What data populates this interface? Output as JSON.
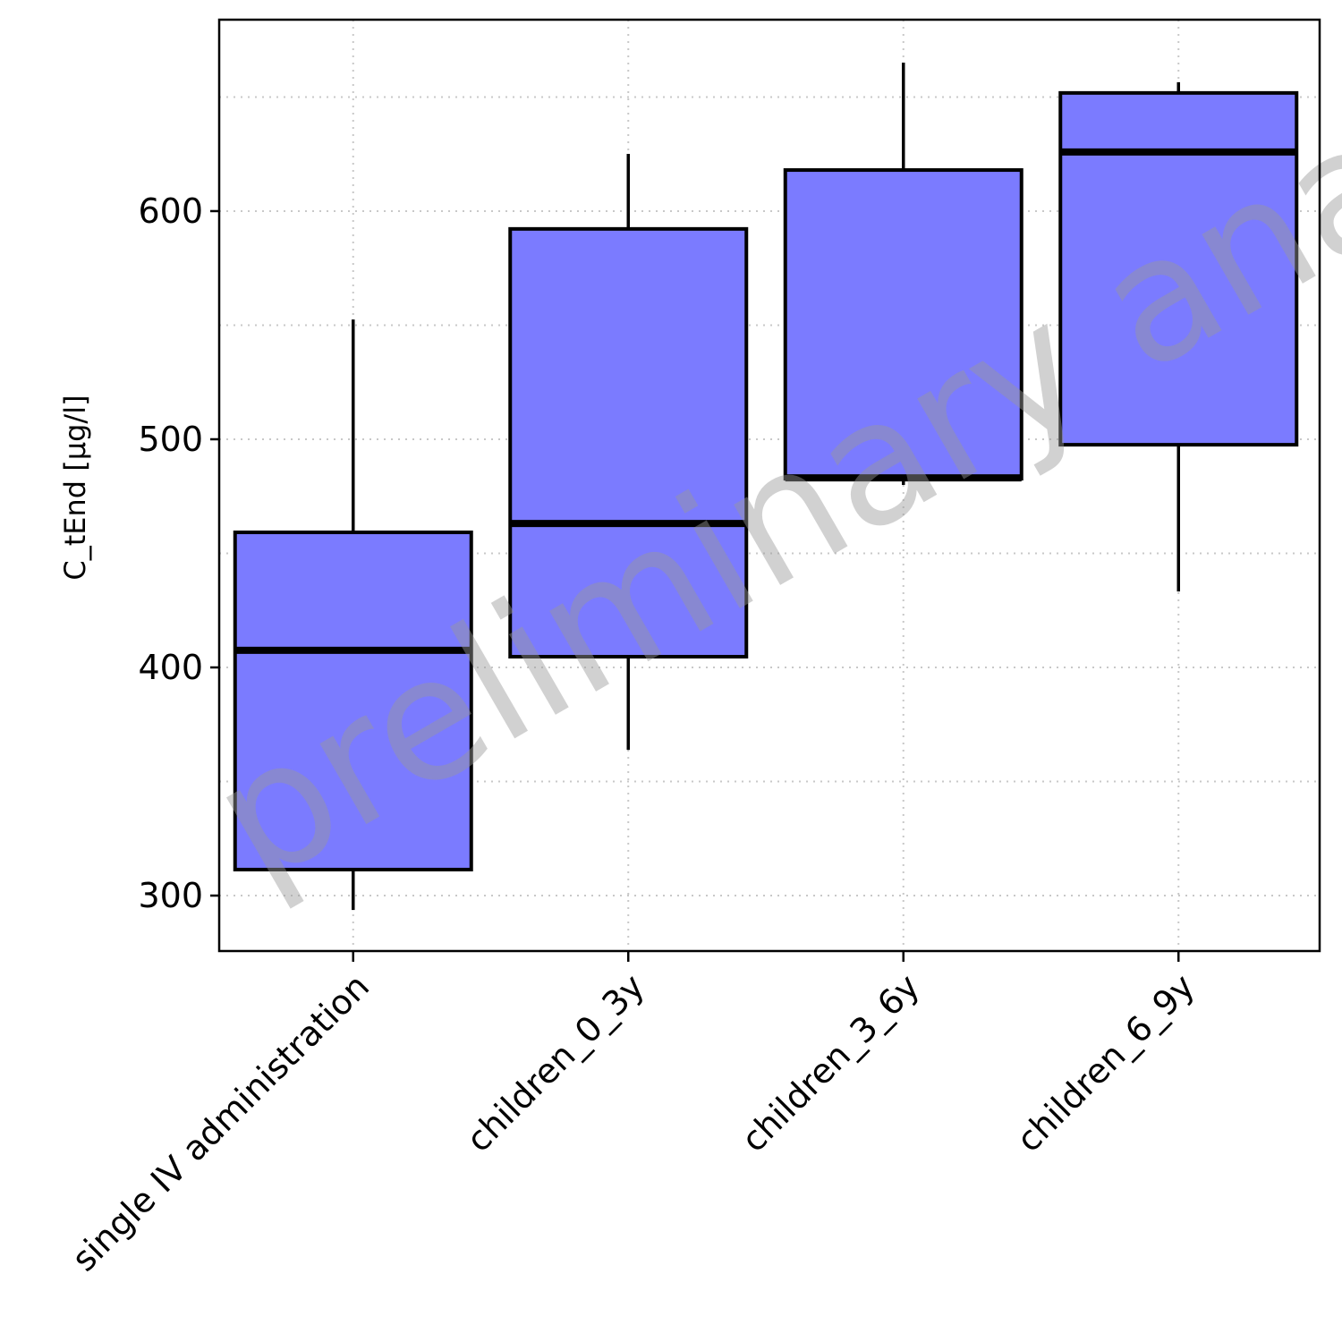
{
  "chart_data": {
    "type": "box",
    "title": "",
    "xlabel": "",
    "ylabel": "C_tEnd [µg/l]",
    "ylim": [
      275.7,
      683.9
    ],
    "yticks": [
      300,
      400,
      500,
      600
    ],
    "ytick_labels": [
      "300",
      "400",
      "500",
      "600"
    ],
    "minor_gridlines": [
      350,
      450,
      550,
      650
    ],
    "grid": true,
    "categories": [
      "single IV administration",
      "children_0_3y",
      "children_3_6y",
      "children_6_9y"
    ],
    "boxes": [
      {
        "whisker_low": 293.7,
        "q1": 311.4,
        "median": 407.5,
        "q3": 459.2,
        "whisker_high": 552.5
      },
      {
        "whisker_low": 363.9,
        "q1": 404.7,
        "median": 463.1,
        "q3": 592.2,
        "whisker_high": 625.1
      },
      {
        "whisker_low": 480.0,
        "q1": 482.7,
        "median": 483.1,
        "q3": 618.0,
        "whisker_high": 665.1
      },
      {
        "whisker_low": 433.3,
        "q1": 497.6,
        "median": 625.9,
        "q3": 651.8,
        "whisker_high": 656.5
      }
    ],
    "box_color": "#7b7bff",
    "watermark": "preliminary analysis"
  }
}
